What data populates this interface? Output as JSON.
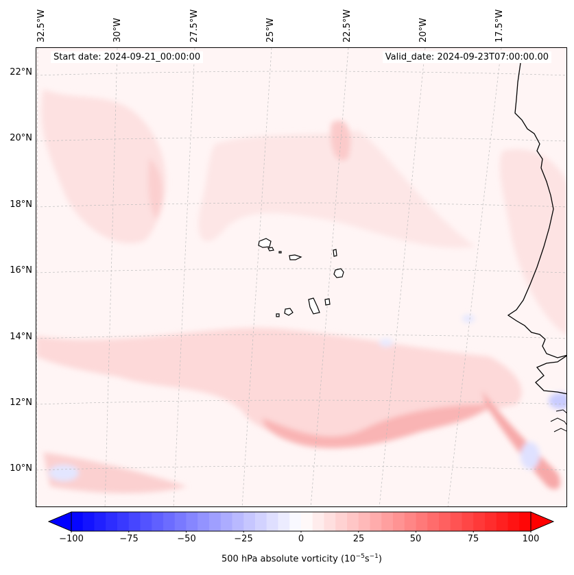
{
  "map": {
    "start_date": "Start date: 2024-09-21_00:00:00",
    "valid_date": "Valid_date: 2024-09-23T07:00:00.00",
    "longitude_labels": [
      "32.5°W",
      "30°W",
      "27.5°W",
      "25°W",
      "22.5°W",
      "20°W",
      "17.5°W"
    ],
    "latitude_labels": [
      "22°N",
      "20°N",
      "18°N",
      "16°N",
      "14°N",
      "12°N",
      "10°N"
    ],
    "region": "Cabo Verde and West African coast"
  },
  "colorbar": {
    "ticks": [
      "−100",
      "−75",
      "−50",
      "−25",
      "0",
      "25",
      "50",
      "75",
      "100"
    ],
    "label": "500 hPa absolute vorticity (10",
    "label_exp1": "−5",
    "label_mid": "s",
    "label_exp2": "−1",
    "label_end": ")",
    "min_value": -100,
    "max_value": 100,
    "negative_color": "#0000ff",
    "positive_color": "#ff0000",
    "neutral_color": "#ffffff"
  }
}
